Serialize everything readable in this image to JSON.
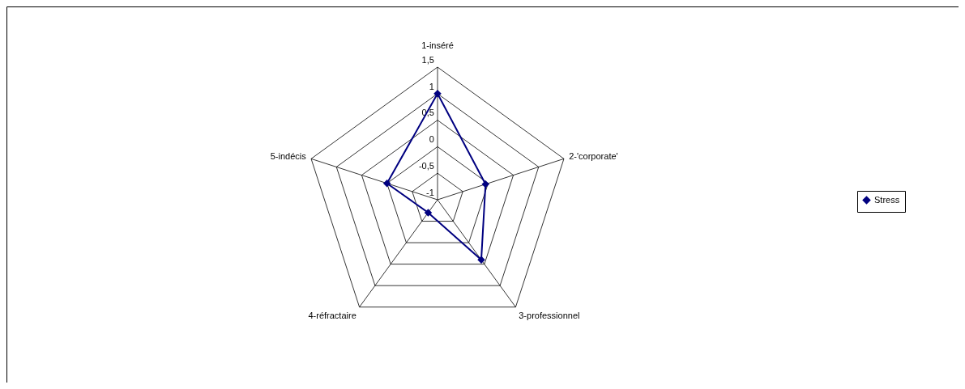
{
  "chart_data": {
    "type": "radar",
    "categories": [
      "1-inséré",
      "2-'corporate'",
      "3-professionnel",
      "4-réfractaire",
      "5-indécis"
    ],
    "series": [
      {
        "name": "Stress",
        "color": "#000080",
        "values": [
          1,
          -0.05,
          0.4,
          -0.7,
          0
        ]
      }
    ],
    "ylim": [
      -1,
      1.5
    ],
    "yticks": [
      -1,
      {
        "value": -0.5,
        "label": "-0,5"
      },
      0,
      {
        "value": 0.5,
        "label": "0,5"
      },
      1,
      {
        "value": 1.5,
        "label": "1,5"
      }
    ],
    "grid": true,
    "legend": "right",
    "marker": "diamond"
  }
}
